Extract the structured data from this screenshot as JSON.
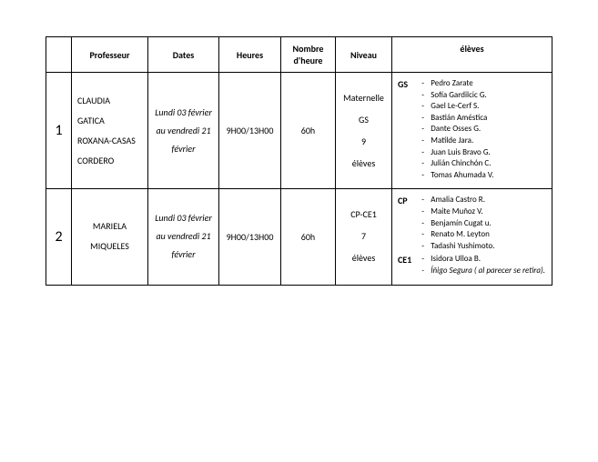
{
  "headers": {
    "num": "",
    "prof": "Professeur",
    "dates": "Dates",
    "heures": "Heures",
    "nombre": "Nombre d'heure",
    "niveau": "Niveau",
    "eleves": "élèves"
  },
  "rows": [
    {
      "num": "1",
      "prof_line1": "CLAUDIA",
      "prof_line2": "GATICA",
      "prof_line3": "ROXANA-CASAS",
      "prof_line4": "CORDERO",
      "dates_line1": "Lundi 03 février",
      "dates_line2": "au vendredi 21",
      "dates_line3": "février",
      "heures": "9H00/13H00",
      "nombre": "60h",
      "niveau_line1": "Maternelle",
      "niveau_line2": "GS",
      "niveau_line3": "9",
      "niveau_line4": "élèves",
      "group1_label": "GS",
      "group1_students": [
        "Pedro Zarate",
        "Sofía Gardilcic G.",
        "Gael Le-Cerf S.",
        "Bastián Améstica",
        "Dante Osses G.",
        "Matilde Jara.",
        "Juan Luis Bravo G.",
        "Julián Chinchón C.",
        "Tomas Ahumada V."
      ]
    },
    {
      "num": "2",
      "prof_line1": "MARIELA",
      "prof_line2": "MIQUELES",
      "dates_line1": "Lundi 03 février",
      "dates_line2": "au vendredi 21",
      "dates_line3": "février",
      "heures": "9H00/13H00",
      "nombre": "60h",
      "niveau_line1": "CP-CE1",
      "niveau_line2": "7",
      "niveau_line3": "élèves",
      "group1_label": "CP",
      "group1_students": [
        "Amalia Castro R.",
        "Maite Muñoz V.",
        "Benjamín Cugat u.",
        "Renato M. Leyton",
        "Tadashi Yushimoto."
      ],
      "group2_label": "CE1",
      "group2_students": [
        "Isidora Ulloa B.",
        "Íñigo Segura ( al parecer se retira)."
      ]
    }
  ]
}
